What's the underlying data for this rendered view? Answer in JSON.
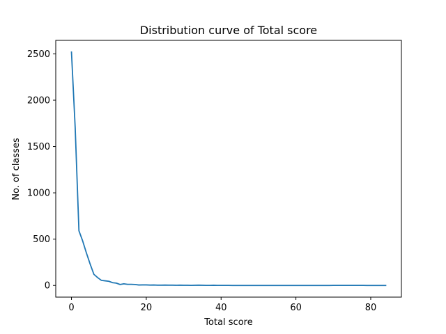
{
  "chart_data": {
    "type": "line",
    "title": "Distribution curve of Total score",
    "xlabel": "Total score",
    "ylabel": "No. of classes",
    "xlim": [
      -4.2,
      88.2
    ],
    "ylim": [
      -126,
      2646
    ],
    "x_ticks": [
      0,
      20,
      40,
      60,
      80
    ],
    "y_ticks": [
      0,
      500,
      1000,
      1500,
      2000,
      2500
    ],
    "x_tick_labels": [
      "0",
      "20",
      "40",
      "60",
      "80"
    ],
    "y_tick_labels": [
      "0",
      "500",
      "1000",
      "1500",
      "2000",
      "2500"
    ],
    "grid": false,
    "legend": "none",
    "colors": {
      "line": "#1f77b4",
      "axes": "#000000"
    },
    "series": [
      {
        "x": [
          0,
          1,
          2,
          3,
          4,
          5,
          6,
          7,
          8,
          9,
          10,
          11,
          12,
          13,
          14,
          15,
          16,
          17,
          18,
          19,
          20,
          21,
          22,
          23,
          24,
          25,
          26,
          27,
          28,
          29,
          30,
          31,
          32,
          33,
          34,
          35,
          36,
          37,
          38,
          39,
          40,
          41,
          42,
          43,
          44,
          45,
          46,
          47,
          48,
          49,
          50,
          51,
          52,
          53,
          54,
          55,
          56,
          57,
          58,
          59,
          60,
          61,
          62,
          63,
          64,
          65,
          66,
          67,
          68,
          69,
          70,
          71,
          72,
          73,
          74,
          75,
          76,
          77,
          78,
          79,
          80,
          81,
          82,
          83,
          84
        ],
        "values": [
          2520,
          1700,
          590,
          480,
          350,
          230,
          120,
          85,
          55,
          50,
          45,
          30,
          25,
          10,
          18,
          12,
          12,
          10,
          5,
          6,
          6,
          4,
          5,
          3,
          3,
          4,
          3,
          3,
          2,
          3,
          2,
          2,
          1,
          2,
          3,
          2,
          1,
          1,
          2,
          1,
          1,
          1,
          1,
          0,
          0,
          0,
          0,
          0,
          0,
          0,
          0,
          0,
          0,
          0,
          0,
          0,
          0,
          0,
          0,
          0,
          0,
          0,
          0,
          0,
          0,
          0,
          0,
          0,
          0,
          0,
          1,
          1,
          1,
          1,
          1,
          1,
          1,
          1,
          1,
          0,
          0,
          0,
          0,
          0,
          0
        ]
      }
    ]
  }
}
